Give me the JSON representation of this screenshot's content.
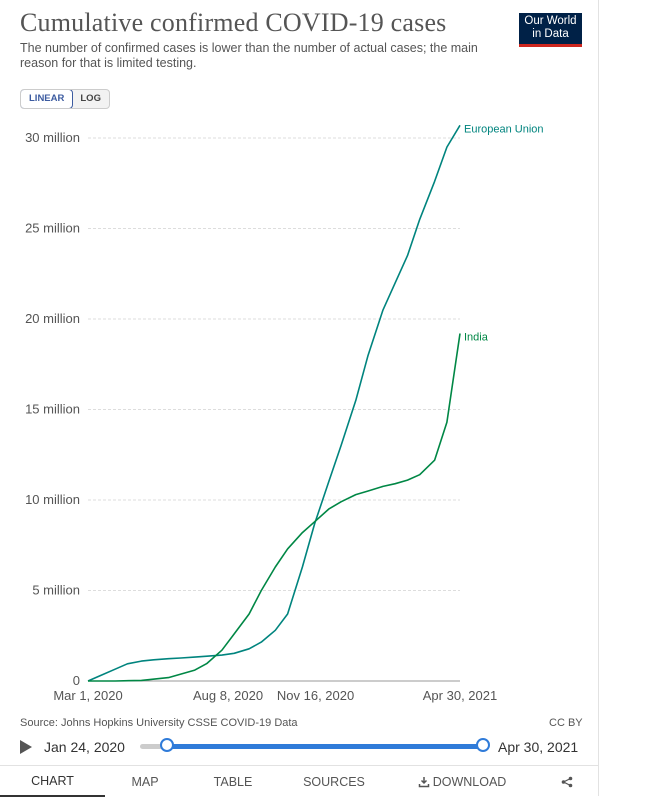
{
  "header": {
    "title": "Cumulative confirmed COVID-19 cases",
    "subtitle": "The number of confirmed cases is lower than the number of actual cases; the main reason for that is limited testing.",
    "logo_line1": "Our World",
    "logo_line2": "in Data"
  },
  "scale_toggle": {
    "linear": "LINEAR",
    "log": "LOG",
    "selected": "LINEAR"
  },
  "chart_data": {
    "type": "line",
    "title": "Cumulative confirmed COVID-19 cases",
    "x_ticks": [
      "Mar 1, 2020",
      "Aug 8, 2020",
      "Nov 16, 2020",
      "Apr 30, 2021"
    ],
    "x_range": [
      "2020-03-01",
      "2021-04-30"
    ],
    "y_ticks": [
      {
        "value": 0,
        "label": "0"
      },
      {
        "value": 5000000,
        "label": "5 million"
      },
      {
        "value": 10000000,
        "label": "10 million"
      },
      {
        "value": 15000000,
        "label": "15 million"
      },
      {
        "value": 20000000,
        "label": "20 million"
      },
      {
        "value": 25000000,
        "label": "25 million"
      },
      {
        "value": 30000000,
        "label": "30 million"
      }
    ],
    "ylim": [
      0,
      30000000
    ],
    "grid": true,
    "series": [
      {
        "name": "European Union",
        "color": "#00847e",
        "points": [
          [
            "2020-03-01",
            2000
          ],
          [
            "2020-03-15",
            300000
          ],
          [
            "2020-04-01",
            650000
          ],
          [
            "2020-04-15",
            950000
          ],
          [
            "2020-05-01",
            1100000
          ],
          [
            "2020-05-15",
            1170000
          ],
          [
            "2020-06-01",
            1230000
          ],
          [
            "2020-06-15",
            1270000
          ],
          [
            "2020-07-01",
            1320000
          ],
          [
            "2020-07-15",
            1370000
          ],
          [
            "2020-08-01",
            1430000
          ],
          [
            "2020-08-15",
            1530000
          ],
          [
            "2020-09-01",
            1780000
          ],
          [
            "2020-09-15",
            2150000
          ],
          [
            "2020-10-01",
            2800000
          ],
          [
            "2020-10-15",
            3700000
          ],
          [
            "2020-11-01",
            6300000
          ],
          [
            "2020-11-15",
            8700000
          ],
          [
            "2020-12-01",
            11000000
          ],
          [
            "2020-12-15",
            13000000
          ],
          [
            "2021-01-01",
            15500000
          ],
          [
            "2021-01-15",
            18000000
          ],
          [
            "2021-02-01",
            20500000
          ],
          [
            "2021-02-15",
            22000000
          ],
          [
            "2021-03-01",
            23500000
          ],
          [
            "2021-03-15",
            25500000
          ],
          [
            "2021-04-01",
            27600000
          ],
          [
            "2021-04-15",
            29500000
          ],
          [
            "2021-04-30",
            30700000
          ]
        ]
      },
      {
        "name": "India",
        "color": "#008745",
        "points": [
          [
            "2020-03-01",
            3
          ],
          [
            "2020-04-01",
            1600
          ],
          [
            "2020-05-01",
            35000
          ],
          [
            "2020-06-01",
            190000
          ],
          [
            "2020-07-01",
            600000
          ],
          [
            "2020-07-15",
            970000
          ],
          [
            "2020-08-01",
            1700000
          ],
          [
            "2020-08-15",
            2600000
          ],
          [
            "2020-09-01",
            3700000
          ],
          [
            "2020-09-15",
            5000000
          ],
          [
            "2020-10-01",
            6300000
          ],
          [
            "2020-10-15",
            7300000
          ],
          [
            "2020-11-01",
            8200000
          ],
          [
            "2020-11-15",
            8800000
          ],
          [
            "2020-12-01",
            9500000
          ],
          [
            "2020-12-15",
            9900000
          ],
          [
            "2021-01-01",
            10300000
          ],
          [
            "2021-01-15",
            10500000
          ],
          [
            "2021-02-01",
            10750000
          ],
          [
            "2021-02-15",
            10900000
          ],
          [
            "2021-03-01",
            11100000
          ],
          [
            "2021-03-15",
            11400000
          ],
          [
            "2021-04-01",
            12200000
          ],
          [
            "2021-04-15",
            14300000
          ],
          [
            "2021-04-30",
            19200000
          ]
        ]
      }
    ]
  },
  "footer": {
    "source": "Source: Johns Hopkins University CSSE COVID-19 Data",
    "license": "CC BY"
  },
  "timeline": {
    "start_label": "Jan 24, 2020",
    "end_label": "Apr 30, 2021",
    "range_start": "2020-03-01",
    "range_end": "2021-04-30"
  },
  "tabs": [
    {
      "label": "CHART",
      "active": true
    },
    {
      "label": "MAP",
      "active": false
    },
    {
      "label": "TABLE",
      "active": false
    },
    {
      "label": "SOURCES",
      "active": false
    },
    {
      "label": "DOWNLOAD",
      "active": false
    }
  ],
  "icons": {
    "share": "share-icon",
    "download": "download-icon",
    "play": "play-icon"
  }
}
